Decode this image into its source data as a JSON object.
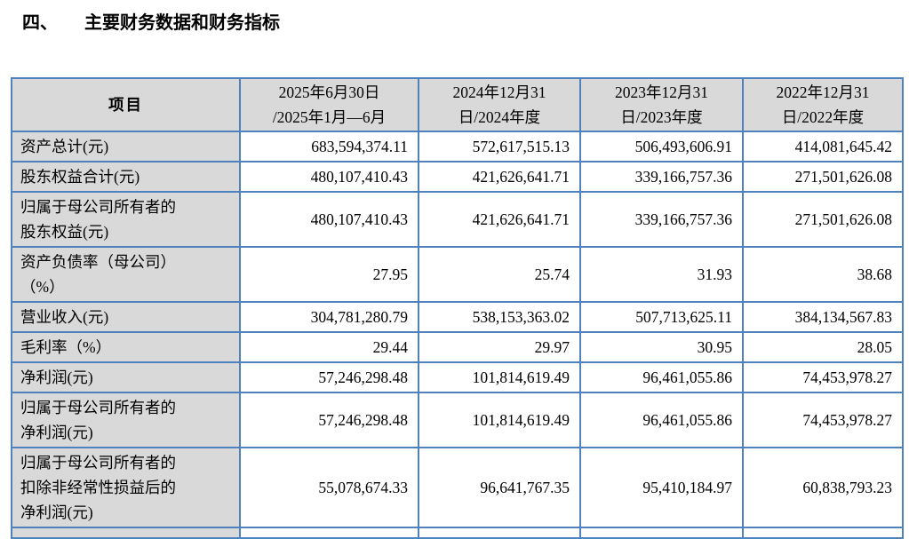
{
  "section": {
    "number": "四、",
    "title": "主要财务数据和财务指标"
  },
  "colors": {
    "table_border": "#4F81BD",
    "header_bg": "#D9D9D9",
    "text": "#000000"
  },
  "table": {
    "columns": [
      "项目",
      "2025年6月30日\n/2025年1月—6月",
      "2024年12月31\n日/2024年度",
      "2023年12月31\n日/2023年度",
      "2022年12月31\n日/2022年度"
    ],
    "rows": [
      {
        "label": "资产总计(元)",
        "values": [
          "683,594,374.11",
          "572,617,515.13",
          "506,493,606.91",
          "414,081,645.42"
        ]
      },
      {
        "label": "股东权益合计(元)",
        "values": [
          "480,107,410.43",
          "421,626,641.71",
          "339,166,757.36",
          "271,501,626.08"
        ]
      },
      {
        "label": "归属于母公司所有者的\n股东权益(元)",
        "values": [
          "480,107,410.43",
          "421,626,641.71",
          "339,166,757.36",
          "271,501,626.08"
        ]
      },
      {
        "label": "资产负债率（母公司）\n（%）",
        "values": [
          "27.95",
          "25.74",
          "31.93",
          "38.68"
        ]
      },
      {
        "label": "营业收入(元)",
        "values": [
          "304,781,280.79",
          "538,153,363.02",
          "507,713,625.11",
          "384,134,567.83"
        ]
      },
      {
        "label": "毛利率（%）",
        "values": [
          "29.44",
          "29.97",
          "30.95",
          "28.05"
        ]
      },
      {
        "label": "净利润(元)",
        "values": [
          "57,246,298.48",
          "101,814,619.49",
          "96,461,055.86",
          "74,453,978.27"
        ]
      },
      {
        "label": "归属于母公司所有者的\n净利润(元)",
        "values": [
          "57,246,298.48",
          "101,814,619.49",
          "96,461,055.86",
          "74,453,978.27"
        ]
      },
      {
        "label": "归属于母公司所有者的\n扣除非经常性损益后的\n净利润(元)",
        "values": [
          "55,078,674.33",
          "96,641,767.35",
          "95,410,184.97",
          "60,838,793.23"
        ]
      }
    ]
  }
}
